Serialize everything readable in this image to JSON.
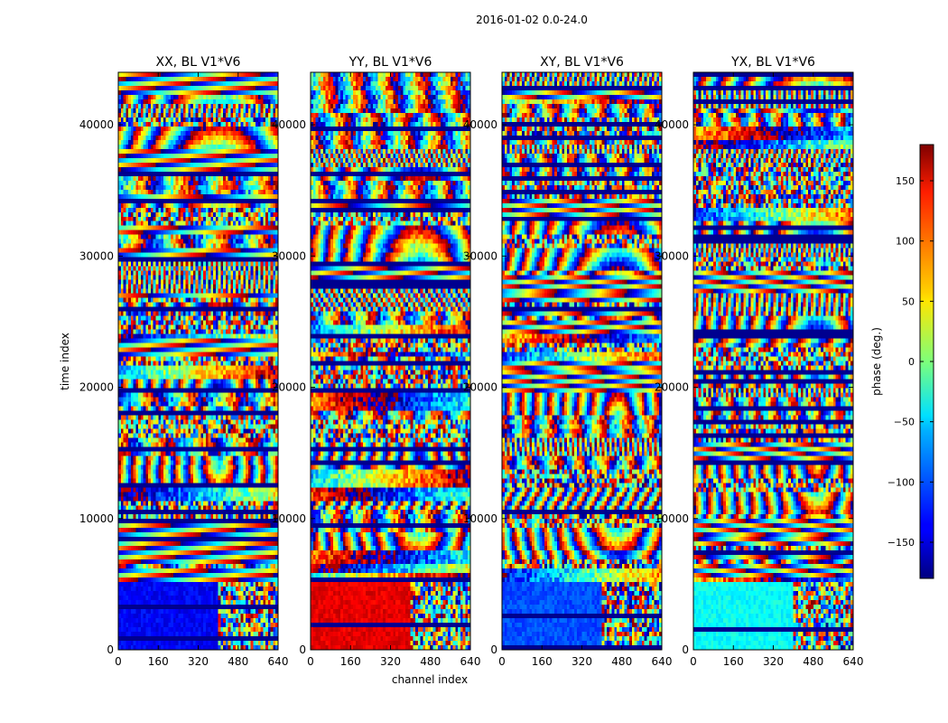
{
  "chart_data": {
    "type": "heatmap",
    "suptitle": "2016-01-02 0.0-24.0",
    "xlabel": "channel index",
    "ylabel": "time index",
    "xlim": [
      0,
      640
    ],
    "ylim": [
      0,
      44000
    ],
    "xticks": [
      0,
      160,
      320,
      480,
      640
    ],
    "yticks": [
      0,
      10000,
      20000,
      30000,
      40000
    ],
    "panels": [
      {
        "title": "XX, BL V1*V6"
      },
      {
        "title": "YY, BL V1*V6"
      },
      {
        "title": "XY, BL V1*V6"
      },
      {
        "title": "YX, BL V1*V6"
      }
    ],
    "colorbar": {
      "label": "phase (deg.)",
      "range": [
        -180,
        180
      ],
      "ticks": [
        -150,
        -100,
        -50,
        0,
        50,
        100,
        150
      ],
      "tick_labels": [
        "−150",
        "−100",
        "−50",
        "0",
        "50",
        "100",
        "150"
      ],
      "colormap": "jet"
    }
  }
}
